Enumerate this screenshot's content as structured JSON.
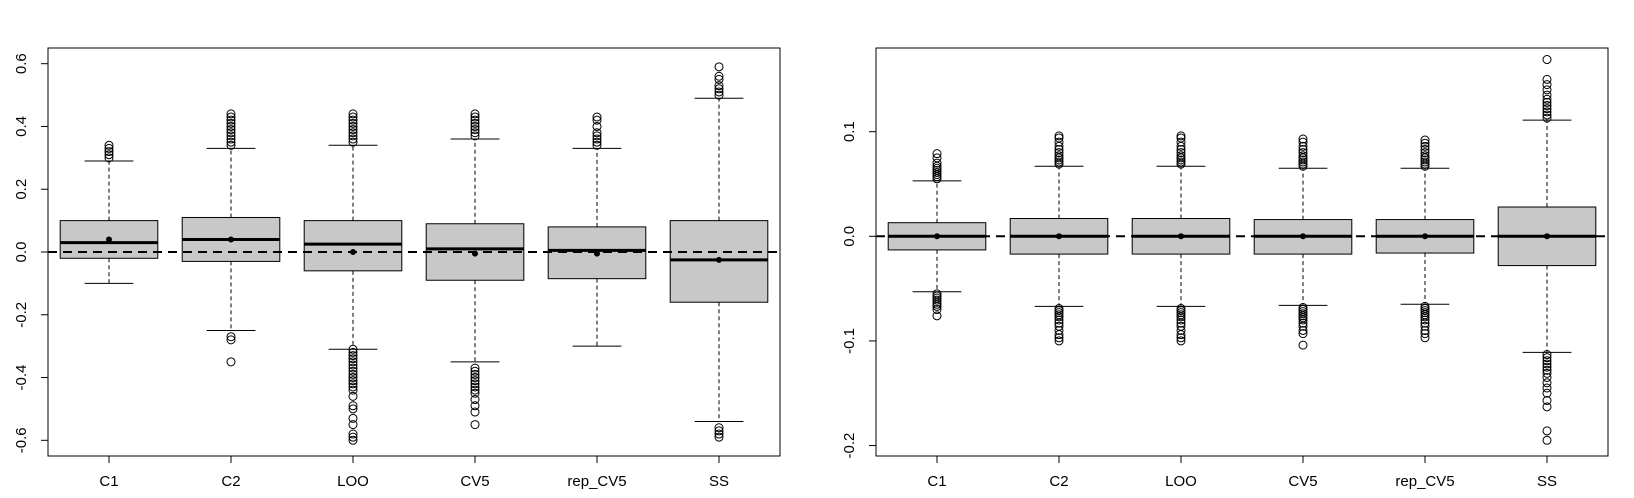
{
  "chart_data": [
    {
      "type": "box",
      "title": "",
      "xlabel": "",
      "ylabel": "",
      "categories": [
        "C1",
        "C2",
        "LOO",
        "CV5",
        "rep_CV5",
        "SS"
      ],
      "ylim": [
        -0.65,
        0.65
      ],
      "yticks": [
        -0.6,
        -0.4,
        -0.2,
        0.0,
        0.2,
        0.4,
        0.6
      ],
      "ytick_labels": [
        "-0.6",
        "-0.4",
        "-0.2",
        "0.0",
        "0.2",
        "0.4",
        "0.6"
      ],
      "reference_line": 0.0,
      "grid": false,
      "boxes": [
        {
          "q1": -0.02,
          "median": 0.03,
          "q3": 0.1,
          "whisker_low": -0.1,
          "whisker_high": 0.29,
          "mean": 0.04,
          "outliers": [
            0.3,
            0.31,
            0.32,
            0.33,
            0.34
          ]
        },
        {
          "q1": -0.03,
          "median": 0.04,
          "q3": 0.11,
          "whisker_low": -0.25,
          "whisker_high": 0.33,
          "mean": 0.04,
          "outliers": [
            -0.27,
            -0.28,
            -0.35,
            0.34,
            0.35,
            0.36,
            0.37,
            0.38,
            0.39,
            0.4,
            0.41,
            0.42,
            0.43,
            0.44
          ]
        },
        {
          "q1": -0.06,
          "median": 0.025,
          "q3": 0.1,
          "whisker_low": -0.31,
          "whisker_high": 0.34,
          "mean": 0.0,
          "outliers": [
            -0.31,
            -0.32,
            -0.33,
            -0.34,
            -0.35,
            -0.36,
            -0.37,
            -0.38,
            -0.39,
            -0.4,
            -0.41,
            -0.42,
            -0.43,
            -0.44,
            -0.46,
            -0.49,
            -0.5,
            -0.53,
            -0.55,
            -0.58,
            -0.59,
            -0.6,
            0.35,
            0.36,
            0.37,
            0.38,
            0.39,
            0.4,
            0.41,
            0.42,
            0.43,
            0.44
          ]
        },
        {
          "q1": -0.09,
          "median": 0.01,
          "q3": 0.09,
          "whisker_low": -0.35,
          "whisker_high": 0.36,
          "mean": -0.005,
          "outliers": [
            -0.37,
            -0.38,
            -0.39,
            -0.4,
            -0.41,
            -0.42,
            -0.43,
            -0.44,
            -0.45,
            -0.47,
            -0.49,
            -0.51,
            -0.55,
            0.37,
            0.38,
            0.39,
            0.4,
            0.41,
            0.42,
            0.43,
            0.44
          ]
        },
        {
          "q1": -0.085,
          "median": 0.005,
          "q3": 0.08,
          "whisker_low": -0.3,
          "whisker_high": 0.33,
          "mean": -0.005,
          "outliers": [
            0.34,
            0.35,
            0.36,
            0.37,
            0.38,
            0.4,
            0.42,
            0.43
          ]
        },
        {
          "q1": -0.16,
          "median": -0.025,
          "q3": 0.1,
          "whisker_low": -0.54,
          "whisker_high": 0.49,
          "mean": -0.025,
          "outliers": [
            -0.56,
            -0.57,
            -0.58,
            -0.59,
            0.5,
            0.51,
            0.52,
            0.53,
            0.55,
            0.56,
            0.59
          ]
        }
      ]
    },
    {
      "type": "box",
      "title": "",
      "xlabel": "",
      "ylabel": "",
      "categories": [
        "C1",
        "C2",
        "LOO",
        "CV5",
        "rep_CV5",
        "SS"
      ],
      "ylim": [
        -0.21,
        0.18
      ],
      "yticks": [
        -0.2,
        -0.1,
        0.0,
        0.1
      ],
      "ytick_labels": [
        "-0.2",
        "-0.1",
        "0.0",
        "0.1"
      ],
      "reference_line": 0.0,
      "grid": false,
      "boxes": [
        {
          "q1": -0.013,
          "median": 0.0,
          "q3": 0.013,
          "whisker_low": -0.053,
          "whisker_high": 0.053,
          "mean": 0.0,
          "outliers": [
            -0.055,
            -0.057,
            -0.059,
            -0.061,
            -0.063,
            -0.065,
            -0.067,
            -0.07,
            -0.076,
            0.055,
            0.057,
            0.059,
            0.061,
            0.063,
            0.065,
            0.067,
            0.07,
            0.075,
            0.079
          ]
        },
        {
          "q1": -0.017,
          "median": 0.0,
          "q3": 0.017,
          "whisker_low": -0.067,
          "whisker_high": 0.067,
          "mean": 0.0,
          "outliers": [
            -0.069,
            -0.071,
            -0.073,
            -0.075,
            -0.077,
            -0.08,
            -0.083,
            -0.086,
            -0.09,
            -0.094,
            -0.097,
            -0.1,
            0.069,
            0.071,
            0.073,
            0.075,
            0.077,
            0.08,
            0.083,
            0.086,
            0.09,
            0.094,
            0.096
          ]
        },
        {
          "q1": -0.017,
          "median": 0.0,
          "q3": 0.017,
          "whisker_low": -0.067,
          "whisker_high": 0.067,
          "mean": 0.0,
          "outliers": [
            -0.069,
            -0.071,
            -0.073,
            -0.075,
            -0.077,
            -0.08,
            -0.083,
            -0.086,
            -0.09,
            -0.094,
            -0.097,
            -0.1,
            0.069,
            0.071,
            0.073,
            0.075,
            0.077,
            0.08,
            0.083,
            0.086,
            0.09,
            0.094,
            0.096
          ]
        },
        {
          "q1": -0.017,
          "median": 0.0,
          "q3": 0.016,
          "whisker_low": -0.066,
          "whisker_high": 0.065,
          "mean": 0.0,
          "outliers": [
            -0.068,
            -0.07,
            -0.072,
            -0.074,
            -0.076,
            -0.078,
            -0.08,
            -0.083,
            -0.086,
            -0.09,
            -0.093,
            -0.104,
            0.067,
            0.069,
            0.071,
            0.073,
            0.075,
            0.077,
            0.08,
            0.083,
            0.086,
            0.09,
            0.093
          ]
        },
        {
          "q1": -0.016,
          "median": 0.0,
          "q3": 0.016,
          "whisker_low": -0.065,
          "whisker_high": 0.065,
          "mean": 0.0,
          "outliers": [
            -0.067,
            -0.069,
            -0.071,
            -0.073,
            -0.075,
            -0.077,
            -0.08,
            -0.083,
            -0.086,
            -0.09,
            -0.093,
            -0.097,
            0.067,
            0.069,
            0.071,
            0.073,
            0.075,
            0.077,
            0.08,
            0.083,
            0.086,
            0.089,
            0.092
          ]
        },
        {
          "q1": -0.028,
          "median": 0.0,
          "q3": 0.028,
          "whisker_low": -0.111,
          "whisker_high": 0.111,
          "mean": 0.0,
          "outliers": [
            -0.113,
            -0.116,
            -0.119,
            -0.122,
            -0.125,
            -0.128,
            -0.131,
            -0.135,
            -0.14,
            -0.145,
            -0.15,
            -0.157,
            -0.163,
            -0.186,
            -0.195,
            0.113,
            0.116,
            0.119,
            0.122,
            0.125,
            0.128,
            0.131,
            0.135,
            0.14,
            0.145,
            0.15,
            0.169
          ]
        }
      ]
    }
  ]
}
